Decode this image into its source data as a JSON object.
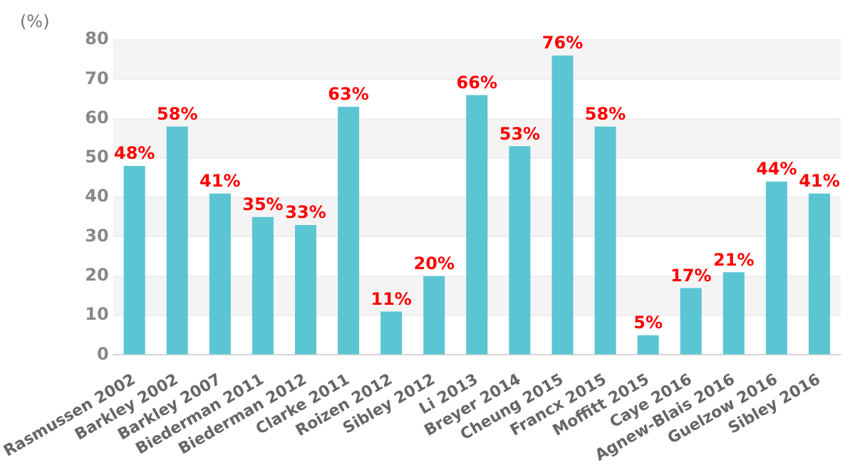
{
  "chart_data": {
    "type": "bar",
    "ylabel": "(%)",
    "categories": [
      "Rasmussen 2002",
      "Barkley 2002",
      "Barkley 2007",
      "Biederman 2011",
      "Biederman 2012",
      "Clarke 2011",
      "Roizen 2012",
      "Sibley 2012",
      "Li 2013",
      "Breyer 2014",
      "Cheung 2015",
      "Francx 2015",
      "Moffitt 2015",
      "Caye 2016",
      "Agnew-Blais 2016",
      "Guelzow 2016",
      "Sibley 2016"
    ],
    "values": [
      48,
      58,
      41,
      35,
      33,
      63,
      11,
      20,
      66,
      53,
      76,
      58,
      5,
      17,
      21,
      44,
      41
    ],
    "value_labels": [
      "48%",
      "58%",
      "41%",
      "35%",
      "33%",
      "63%",
      "11%",
      "20%",
      "66%",
      "53%",
      "76%",
      "58%",
      "5%",
      "17%",
      "21%",
      "44%",
      "41%"
    ],
    "color": "#5bc5d3",
    "ylim": [
      0,
      80
    ],
    "yticks": [
      0,
      10,
      20,
      30,
      40,
      50,
      60,
      70,
      80
    ],
    "grid": "y"
  }
}
